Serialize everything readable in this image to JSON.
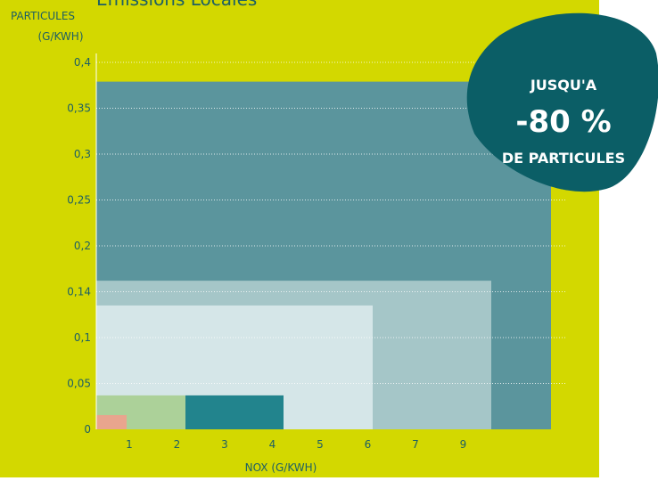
{
  "chart_data": {
    "type": "nested-box",
    "title": "Emissions Locales",
    "y_label": [
      "PARTICULES",
      "(G/KWH)"
    ],
    "x_label": "NOX (G/KWH)",
    "categories": [
      "1",
      "2",
      "3",
      "4",
      "5",
      "6",
      "7",
      "9"
    ],
    "ylim": [
      0,
      0.4
    ],
    "yticks": [
      {
        "value": 0,
        "label": "0"
      },
      {
        "value": 0.05,
        "label": "0,05"
      },
      {
        "value": 0.1,
        "label": "0,1"
      },
      {
        "value": 0.14,
        "label": "0,14"
      },
      {
        "value": 0.2,
        "label": "0,2"
      },
      {
        "value": 0.25,
        "label": "0,25"
      },
      {
        "value": 0.3,
        "label": "0,3"
      },
      {
        "value": 0.35,
        "label": "0,35"
      },
      {
        "value": 0.4,
        "label": "0,4"
      }
    ],
    "grid": true,
    "background": "#d3d800",
    "boxes": [
      {
        "value": 0.379,
        "color": "#5b959d"
      },
      {
        "value": 0.162,
        "color": "#a5c6c8"
      },
      {
        "value": 0.135,
        "color": "#d5e6e8"
      },
      {
        "value": 0.037,
        "color": "#acd199"
      },
      {
        "value": 0.037,
        "color": "#22848d"
      },
      {
        "value": 0.0155,
        "color": "#e9a58e"
      }
    ],
    "annotation": {
      "lines": [
        "JUSQU'A",
        "-80 %",
        "DE PARTICULES"
      ],
      "color": "#0b5e66"
    }
  }
}
